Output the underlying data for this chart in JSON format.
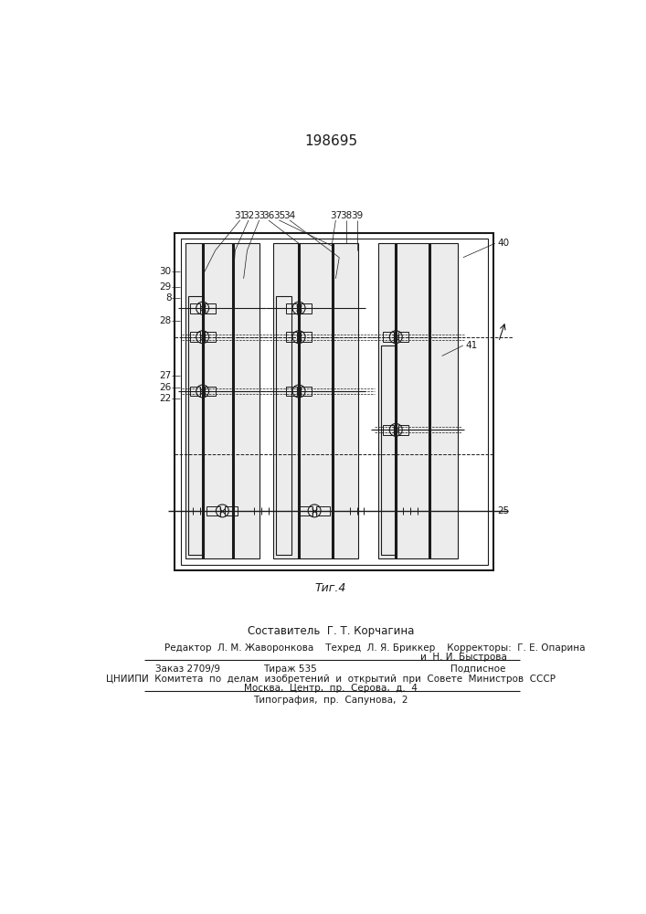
{
  "title": "198695",
  "fig_label": "Τиг.4",
  "bg_color": "#ffffff",
  "line_color": "#1a1a1a",
  "page_width": 7.07,
  "page_height": 10.0,
  "composer_line": "Составитель  Г. Τ. Корчагина",
  "editor_line": "Редактор  Л. М. Жаворонкова    Техред  Л. Я. Бриккер    Корректоры:  Г. Е. Опарина",
  "corrector2_line": "и  Н. И. Быстрова",
  "order_line": "Заказ 2709/9",
  "tirazh_line": "Тираж 535",
  "podpisnoe_line": "Подписное",
  "cniip_line": "ЦНИИПИ  Комитета  по  делам  изобретений  и  открытий  при  Совете  Министров  СССР",
  "moscow_line": "Москва,  Центр,  пр.  Серова,  д.  4",
  "print_line": "Типография,  пр.  Сапунова,  2"
}
